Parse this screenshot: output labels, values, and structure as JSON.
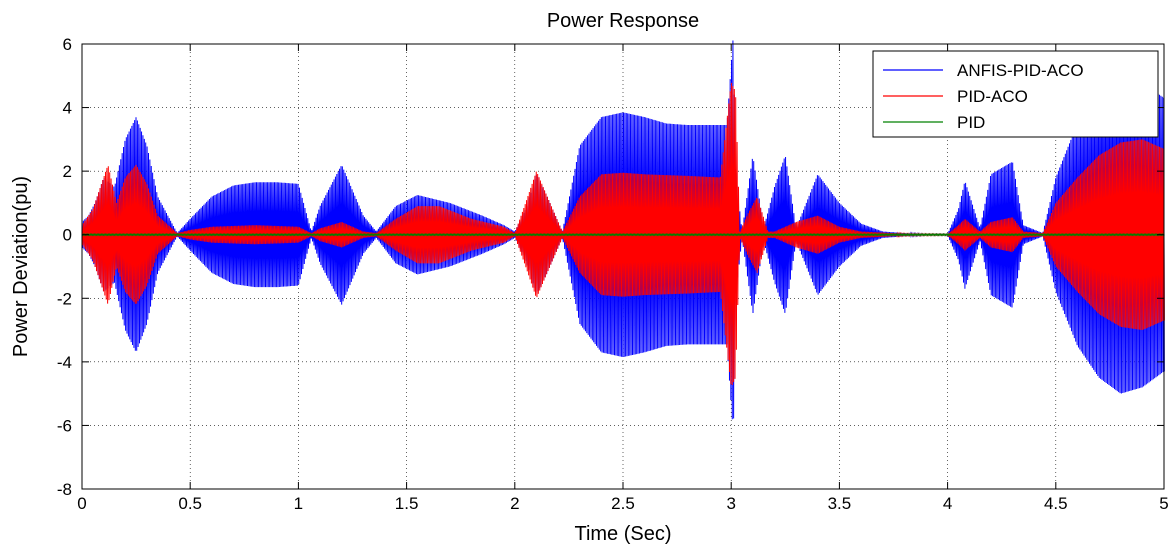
{
  "chart_data": {
    "type": "line",
    "title": "Power Response",
    "xlabel": "Time (Sec)",
    "ylabel": "Power Deviation(pu)",
    "xlim": [
      0,
      5
    ],
    "ylim": [
      -8,
      6
    ],
    "xticks": [
      0,
      0.5,
      1,
      1.5,
      2,
      2.5,
      3,
      3.5,
      4,
      4.5,
      5
    ],
    "xtick_labels": [
      "0",
      "0.5",
      "1",
      "1.5",
      "2",
      "2.5",
      "3",
      "3.5",
      "4",
      "4.5",
      "5"
    ],
    "yticks": [
      -8,
      -6,
      -4,
      -2,
      0,
      2,
      4,
      6
    ],
    "ytick_labels": [
      "-8",
      "-6",
      "-4",
      "-2",
      "0",
      "2",
      "4",
      "6"
    ],
    "grid": true,
    "legend_position": "top-right",
    "series": [
      {
        "name": "ANFIS-PID-ACO",
        "color": "#0000ff",
        "style": "dense oscillation",
        "envelope_t": [
          0,
          0.03,
          0.06,
          0.1,
          0.15,
          0.2,
          0.25,
          0.3,
          0.35,
          0.44,
          0.5,
          0.6,
          0.7,
          0.8,
          0.9,
          1.0,
          1.06,
          1.1,
          1.2,
          1.3,
          1.36,
          1.45,
          1.55,
          1.7,
          1.85,
          1.95,
          2.0,
          2.05,
          2.1,
          2.15,
          2.22,
          2.3,
          2.4,
          2.5,
          2.6,
          2.7,
          2.8,
          2.9,
          2.98,
          3.01,
          3.02,
          3.05,
          3.1,
          3.15,
          3.2,
          3.25,
          3.3,
          3.4,
          3.5,
          3.6,
          3.7,
          3.8,
          3.9,
          4.0,
          4.05,
          4.08,
          4.15,
          4.2,
          4.3,
          4.35,
          4.44,
          4.5,
          4.6,
          4.7,
          4.8,
          4.9,
          5.0
        ],
        "envelope_amp": [
          0.4,
          0.6,
          1.0,
          1.8,
          1.5,
          3.0,
          3.7,
          2.8,
          1.2,
          0.05,
          0.5,
          1.2,
          1.55,
          1.65,
          1.65,
          1.6,
          0.1,
          0.9,
          2.2,
          0.6,
          0.1,
          0.9,
          1.25,
          1.0,
          0.6,
          0.3,
          0.1,
          0.8,
          1.9,
          1.2,
          0.1,
          2.8,
          3.7,
          3.85,
          3.7,
          3.5,
          3.45,
          3.45,
          3.45,
          6.3,
          2.0,
          0.1,
          2.5,
          0.2,
          1.5,
          2.5,
          0.2,
          1.9,
          1.0,
          0.35,
          0.1,
          0.05,
          0.02,
          0.02,
          0.8,
          1.7,
          0.2,
          1.9,
          2.3,
          0.3,
          0.05,
          1.8,
          3.5,
          4.5,
          5.0,
          4.8,
          4.3
        ]
      },
      {
        "name": "PID-ACO",
        "color": "#ff0000",
        "style": "dense oscillation",
        "envelope_t": [
          0,
          0.05,
          0.09,
          0.12,
          0.16,
          0.2,
          0.25,
          0.3,
          0.35,
          0.44,
          0.5,
          0.6,
          0.8,
          1.0,
          1.06,
          1.1,
          1.2,
          1.3,
          1.36,
          1.45,
          1.55,
          1.65,
          1.8,
          1.95,
          2.0,
          2.05,
          2.1,
          2.15,
          2.22,
          2.3,
          2.4,
          2.5,
          2.6,
          2.8,
          2.95,
          3.0,
          3.02,
          3.04,
          3.08,
          3.12,
          3.17,
          3.2,
          3.3,
          3.4,
          3.5,
          3.6,
          3.8,
          4.0,
          4.05,
          4.08,
          4.15,
          4.2,
          4.3,
          4.35,
          4.44,
          4.5,
          4.6,
          4.7,
          4.8,
          4.9,
          5.0
        ],
        "envelope_amp": [
          0.3,
          0.8,
          1.6,
          2.2,
          1.0,
          1.8,
          2.2,
          1.6,
          0.6,
          0.05,
          0.15,
          0.25,
          0.3,
          0.25,
          0.05,
          0.2,
          0.4,
          0.1,
          0.05,
          0.5,
          0.9,
          0.9,
          0.5,
          0.25,
          0.05,
          1.0,
          2.0,
          1.2,
          0.1,
          1.2,
          1.9,
          1.95,
          1.9,
          1.85,
          1.8,
          4.8,
          4.5,
          0.1,
          0.7,
          1.2,
          0.1,
          0.1,
          0.4,
          0.6,
          0.25,
          0.1,
          0.03,
          0.02,
          0.3,
          0.5,
          0.1,
          0.4,
          0.55,
          0.1,
          0.05,
          1.0,
          1.8,
          2.5,
          2.9,
          3.0,
          2.7
        ]
      },
      {
        "name": "PID",
        "color": "#008000",
        "style": "near-zero",
        "envelope_t": [
          0,
          5
        ],
        "envelope_amp": [
          0.02,
          0.02
        ]
      }
    ]
  }
}
